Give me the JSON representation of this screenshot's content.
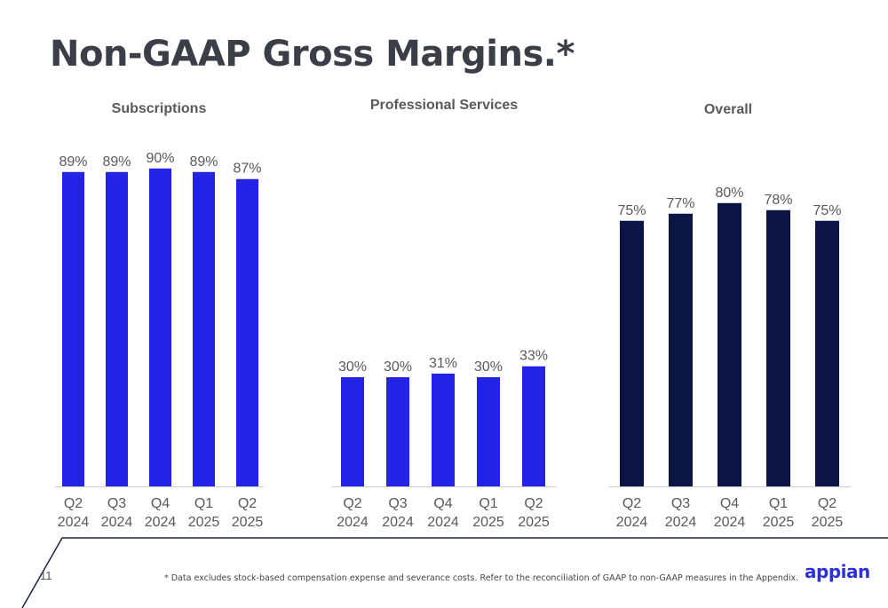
{
  "page": {
    "title": "Non-GAAP Gross Margins.*",
    "page_number": "11",
    "footnote": "* Data excludes stock-based compensation expense and severance costs. Refer to the reconciliation of GAAP to non-GAAP measures in the Appendix.",
    "logo_text": "appian"
  },
  "chart_data": [
    {
      "type": "bar",
      "title": "Subscriptions",
      "categories": [
        "Q2 2024",
        "Q3 2024",
        "Q4 2024",
        "Q1 2025",
        "Q2 2025"
      ],
      "values": [
        89,
        89,
        90,
        89,
        87
      ],
      "labels": [
        "89%",
        "89%",
        "90%",
        "89%",
        "87%"
      ],
      "color": "#2323e6",
      "ylim": [
        0,
        100
      ]
    },
    {
      "type": "bar",
      "title": "Professional Services",
      "categories": [
        "Q2 2024",
        "Q3 2024",
        "Q4 2024",
        "Q1 2025",
        "Q2 2025"
      ],
      "values": [
        30,
        30,
        31,
        30,
        33
      ],
      "labels": [
        "30%",
        "30%",
        "31%",
        "30%",
        "33%"
      ],
      "color": "#2323e6",
      "ylim": [
        0,
        100
      ]
    },
    {
      "type": "bar",
      "title": "Overall",
      "categories": [
        "Q2 2024",
        "Q3 2024",
        "Q4 2024",
        "Q1 2025",
        "Q2 2025"
      ],
      "values": [
        75,
        77,
        80,
        78,
        75
      ],
      "labels": [
        "75%",
        "77%",
        "80%",
        "78%",
        "75%"
      ],
      "color": "#0b1445",
      "ylim": [
        0,
        100
      ]
    }
  ]
}
